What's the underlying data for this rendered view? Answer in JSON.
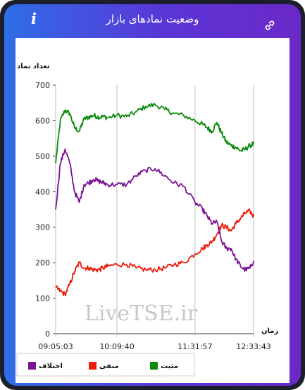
{
  "header": {
    "title": "وضعیت نمادهای بازار",
    "left_icon": "info-icon",
    "right_icon": "link-icon"
  },
  "watermark": "LiveTSE.ir",
  "colors": {
    "positive": "#0a8a0a",
    "negative": "#ee1a0a",
    "diff": "#7a1294",
    "header_start": "#2f6de8",
    "header_end": "#6b28c8"
  },
  "chart_data": {
    "type": "line",
    "ylabel": "تعداد نماد",
    "xlabel": "زمان",
    "ylim": [
      0,
      700
    ],
    "y_ticks": [
      "0",
      "100",
      "200",
      "300",
      "400",
      "500",
      "600",
      "700"
    ],
    "x_ticks": [
      "09:05:03",
      "10:09:40",
      "11:31:57",
      "12:33:43"
    ],
    "legend_position": "bottom",
    "x_time": [
      "09:05:03",
      "09:10",
      "09:15",
      "09:20",
      "09:25",
      "09:30",
      "09:35",
      "09:40",
      "09:45",
      "09:50",
      "09:55",
      "10:00",
      "10:09:40",
      "10:20",
      "10:30",
      "10:40",
      "10:50",
      "11:00",
      "11:10",
      "11:20",
      "11:31:57",
      "11:40",
      "11:45",
      "11:50",
      "11:55",
      "12:00",
      "12:05",
      "12:10",
      "12:15",
      "12:20",
      "12:25",
      "12:30",
      "12:33:43"
    ],
    "series": [
      {
        "name": "مثبت",
        "color": "#0a8a0a",
        "values": [
          480,
          600,
          630,
          620,
          580,
          570,
          605,
          610,
          615,
          610,
          612,
          608,
          615,
          612,
          625,
          640,
          645,
          632,
          620,
          615,
          600,
          590,
          580,
          570,
          595,
          565,
          540,
          530,
          525,
          515,
          520,
          530,
          535
        ]
      },
      {
        "name": "منفی",
        "color": "#ee1a0a",
        "values": [
          130,
          120,
          110,
          140,
          175,
          200,
          185,
          185,
          180,
          180,
          185,
          190,
          195,
          195,
          185,
          180,
          180,
          185,
          195,
          200,
          225,
          240,
          250,
          260,
          280,
          305,
          300,
          290,
          310,
          325,
          340,
          345,
          330
        ]
      },
      {
        "name": "اختلاف",
        "color": "#7a1294",
        "values": [
          350,
          480,
          520,
          480,
          400,
          370,
          420,
          425,
          435,
          430,
          425,
          420,
          420,
          420,
          445,
          460,
          465,
          445,
          425,
          415,
          370,
          350,
          330,
          310,
          315,
          260,
          240,
          240,
          210,
          190,
          180,
          185,
          205
        ]
      }
    ]
  }
}
